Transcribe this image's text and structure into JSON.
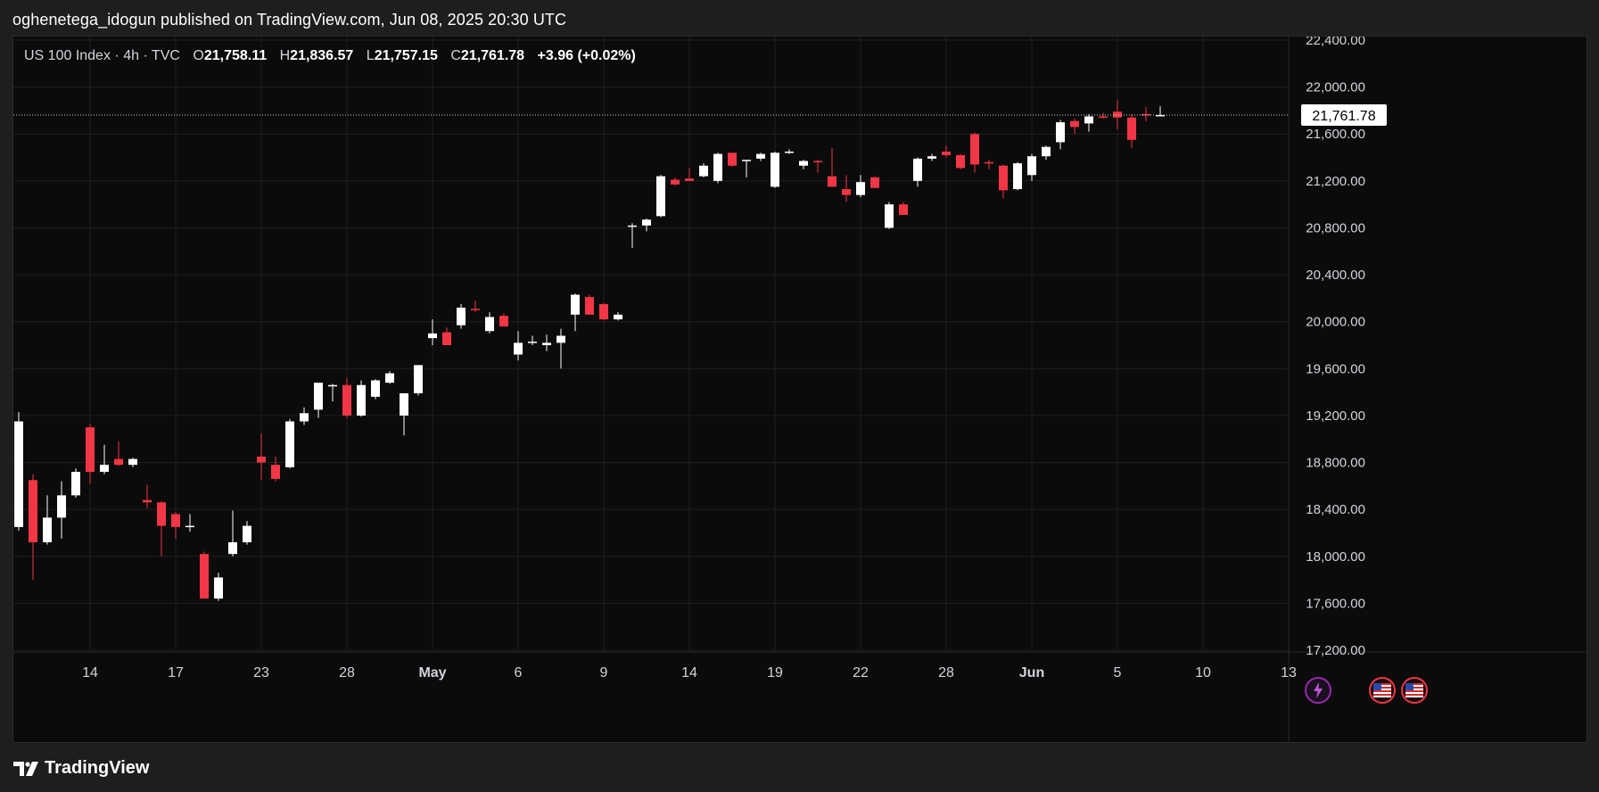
{
  "header": {
    "published_text": "oghenetega_idogun published on TradingView.com, Jun 08, 2025 20:30 UTC"
  },
  "legend": {
    "symbol": "US 100 Index",
    "sep1": "·",
    "interval": "4h",
    "sep2": "·",
    "source": "TVC",
    "open_label": "O",
    "open_value": "21,758.11",
    "high_label": "H",
    "high_value": "21,836.57",
    "low_label": "L",
    "low_value": "21,757.15",
    "close_label": "C",
    "close_value": "21,761.78",
    "change": "+3.96 (+0.02%)"
  },
  "last_price_label": "21,761.78",
  "footer": {
    "brand": "TradingView"
  },
  "colors": {
    "background": "#0b0b0b",
    "up": "#ffffff",
    "down": "#f23645",
    "grid": "#1f1f1f",
    "axis_text": "#d1d4dc",
    "event_lightning": "#9c27b0",
    "event_flag": "#f23645"
  },
  "events": [
    {
      "type": "lightning-icon"
    },
    {
      "type": "us-flag-icon"
    },
    {
      "type": "us-flag-icon"
    }
  ],
  "chart_data": {
    "type": "candlestick",
    "title": "US 100 Index · 4h · TVC",
    "ylim": [
      17200,
      22400
    ],
    "y_ticks": [
      "17,200.00",
      "17,600.00",
      "18,000.00",
      "18,400.00",
      "18,800.00",
      "19,200.00",
      "19,600.00",
      "20,000.00",
      "20,400.00",
      "20,800.00",
      "21,200.00",
      "21,600.00",
      "22,000.00",
      "22,400.00"
    ],
    "y_tick_values": [
      17200,
      17600,
      18000,
      18400,
      18800,
      19200,
      19600,
      20000,
      20400,
      20800,
      21200,
      21600,
      22000,
      22400
    ],
    "x_ticks": [
      "14",
      "17",
      "23",
      "28",
      "May",
      "6",
      "9",
      "14",
      "19",
      "22",
      "28",
      "Jun",
      "5",
      "10",
      "13"
    ],
    "x_tick_index": [
      5,
      11,
      17,
      23,
      29,
      35,
      41,
      47,
      53,
      59,
      65,
      71,
      77,
      83,
      89
    ],
    "last_price": 21761.78,
    "grid": true,
    "candles": [
      {
        "o": 18250,
        "h": 19230,
        "l": 18220,
        "c": 19150
      },
      {
        "o": 18650,
        "h": 18700,
        "l": 17800,
        "c": 18120
      },
      {
        "o": 18120,
        "h": 18520,
        "l": 18100,
        "c": 18330
      },
      {
        "o": 18330,
        "h": 18640,
        "l": 18150,
        "c": 18520
      },
      {
        "o": 18520,
        "h": 18750,
        "l": 18500,
        "c": 18720
      },
      {
        "o": 19100,
        "h": 19130,
        "l": 18620,
        "c": 18720
      },
      {
        "o": 18720,
        "h": 18950,
        "l": 18700,
        "c": 18780
      },
      {
        "o": 18830,
        "h": 18980,
        "l": 18770,
        "c": 18780
      },
      {
        "o": 18780,
        "h": 18840,
        "l": 18760,
        "c": 18830
      },
      {
        "o": 18480,
        "h": 18610,
        "l": 18410,
        "c": 18460
      },
      {
        "o": 18460,
        "h": 18470,
        "l": 18000,
        "c": 18260
      },
      {
        "o": 18360,
        "h": 18380,
        "l": 18150,
        "c": 18250
      },
      {
        "o": 18250,
        "h": 18360,
        "l": 18210,
        "c": 18260
      },
      {
        "o": 18020,
        "h": 18040,
        "l": 17640,
        "c": 17640
      },
      {
        "o": 17640,
        "h": 17860,
        "l": 17620,
        "c": 17820
      },
      {
        "o": 18020,
        "h": 18390,
        "l": 18000,
        "c": 18120
      },
      {
        "o": 18120,
        "h": 18300,
        "l": 18100,
        "c": 18260
      },
      {
        "o": 18850,
        "h": 19050,
        "l": 18650,
        "c": 18800
      },
      {
        "o": 18780,
        "h": 18850,
        "l": 18640,
        "c": 18660
      },
      {
        "o": 18760,
        "h": 19170,
        "l": 18750,
        "c": 19150
      },
      {
        "o": 19150,
        "h": 19270,
        "l": 19120,
        "c": 19220
      },
      {
        "o": 19250,
        "h": 19470,
        "l": 19180,
        "c": 19480
      },
      {
        "o": 19460,
        "h": 19470,
        "l": 19320,
        "c": 19460
      },
      {
        "o": 19460,
        "h": 19520,
        "l": 19180,
        "c": 19200
      },
      {
        "o": 19200,
        "h": 19500,
        "l": 19190,
        "c": 19460
      },
      {
        "o": 19360,
        "h": 19510,
        "l": 19340,
        "c": 19500
      },
      {
        "o": 19480,
        "h": 19580,
        "l": 19470,
        "c": 19560
      },
      {
        "o": 19200,
        "h": 19360,
        "l": 19030,
        "c": 19390
      },
      {
        "o": 19390,
        "h": 19620,
        "l": 19370,
        "c": 19630
      },
      {
        "o": 19860,
        "h": 20020,
        "l": 19800,
        "c": 19900
      },
      {
        "o": 19910,
        "h": 19950,
        "l": 19800,
        "c": 19800
      },
      {
        "o": 19970,
        "h": 20150,
        "l": 19940,
        "c": 20120
      },
      {
        "o": 20110,
        "h": 20180,
        "l": 20080,
        "c": 20100
      },
      {
        "o": 19920,
        "h": 20080,
        "l": 19900,
        "c": 20040
      },
      {
        "o": 20050,
        "h": 20070,
        "l": 19960,
        "c": 19960
      },
      {
        "o": 19720,
        "h": 19920,
        "l": 19670,
        "c": 19820
      },
      {
        "o": 19820,
        "h": 19880,
        "l": 19800,
        "c": 19830
      },
      {
        "o": 19800,
        "h": 19890,
        "l": 19750,
        "c": 19820
      },
      {
        "o": 19820,
        "h": 19940,
        "l": 19600,
        "c": 19880
      },
      {
        "o": 20060,
        "h": 20240,
        "l": 19920,
        "c": 20230
      },
      {
        "o": 20210,
        "h": 20230,
        "l": 20060,
        "c": 20060
      },
      {
        "o": 20150,
        "h": 20160,
        "l": 20010,
        "c": 20020
      },
      {
        "o": 20020,
        "h": 20080,
        "l": 20010,
        "c": 20060
      },
      {
        "o": 20820,
        "h": 20840,
        "l": 20630,
        "c": 20820
      },
      {
        "o": 20820,
        "h": 20880,
        "l": 20770,
        "c": 20870
      },
      {
        "o": 20900,
        "h": 21250,
        "l": 20890,
        "c": 21240
      },
      {
        "o": 21210,
        "h": 21230,
        "l": 21160,
        "c": 21170
      },
      {
        "o": 21220,
        "h": 21310,
        "l": 21200,
        "c": 21200
      },
      {
        "o": 21240,
        "h": 21350,
        "l": 21230,
        "c": 21330
      },
      {
        "o": 21200,
        "h": 21440,
        "l": 21180,
        "c": 21430
      },
      {
        "o": 21440,
        "h": 21440,
        "l": 21320,
        "c": 21330
      },
      {
        "o": 21370,
        "h": 21380,
        "l": 21230,
        "c": 21380
      },
      {
        "o": 21390,
        "h": 21440,
        "l": 21370,
        "c": 21430
      },
      {
        "o": 21150,
        "h": 21450,
        "l": 21140,
        "c": 21440
      },
      {
        "o": 21450,
        "h": 21470,
        "l": 21430,
        "c": 21450
      },
      {
        "o": 21330,
        "h": 21380,
        "l": 21300,
        "c": 21370
      },
      {
        "o": 21370,
        "h": 21380,
        "l": 21270,
        "c": 21360
      },
      {
        "o": 21240,
        "h": 21480,
        "l": 21150,
        "c": 21150
      },
      {
        "o": 21130,
        "h": 21250,
        "l": 21020,
        "c": 21080
      },
      {
        "o": 21080,
        "h": 21250,
        "l": 21060,
        "c": 21190
      },
      {
        "o": 21230,
        "h": 21240,
        "l": 21140,
        "c": 21140
      },
      {
        "o": 20800,
        "h": 21020,
        "l": 20790,
        "c": 21000
      },
      {
        "o": 21000,
        "h": 21020,
        "l": 20910,
        "c": 20910
      },
      {
        "o": 21200,
        "h": 21400,
        "l": 21150,
        "c": 21390
      },
      {
        "o": 21390,
        "h": 21430,
        "l": 21370,
        "c": 21410
      },
      {
        "o": 21450,
        "h": 21500,
        "l": 21400,
        "c": 21420
      },
      {
        "o": 21420,
        "h": 21430,
        "l": 21300,
        "c": 21310
      },
      {
        "o": 21600,
        "h": 21610,
        "l": 21270,
        "c": 21340
      },
      {
        "o": 21360,
        "h": 21380,
        "l": 21300,
        "c": 21350
      },
      {
        "o": 21330,
        "h": 21340,
        "l": 21050,
        "c": 21120
      },
      {
        "o": 21130,
        "h": 21360,
        "l": 21120,
        "c": 21350
      },
      {
        "o": 21250,
        "h": 21430,
        "l": 21200,
        "c": 21410
      },
      {
        "o": 21410,
        "h": 21500,
        "l": 21380,
        "c": 21490
      },
      {
        "o": 21530,
        "h": 21720,
        "l": 21470,
        "c": 21700
      },
      {
        "o": 21710,
        "h": 21730,
        "l": 21600,
        "c": 21660
      },
      {
        "o": 21690,
        "h": 21770,
        "l": 21620,
        "c": 21750
      },
      {
        "o": 21750,
        "h": 21780,
        "l": 21730,
        "c": 21740
      },
      {
        "o": 21790,
        "h": 21890,
        "l": 21640,
        "c": 21740
      },
      {
        "o": 21740,
        "h": 21770,
        "l": 21480,
        "c": 21550
      },
      {
        "o": 21770,
        "h": 21830,
        "l": 21710,
        "c": 21760
      },
      {
        "o": 21758.11,
        "h": 21836.57,
        "l": 21757.15,
        "c": 21761.78
      }
    ]
  }
}
